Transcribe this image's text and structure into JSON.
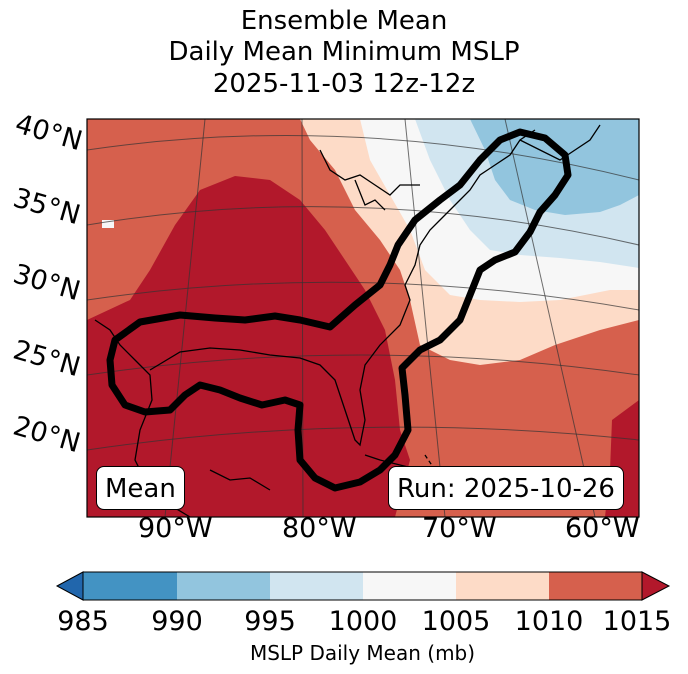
{
  "title": {
    "line1": "Ensemble Mean",
    "line2": "Daily Mean Minimum MSLP",
    "line3": "2025-11-03 12z-12z"
  },
  "map": {
    "lat_labels": [
      "40°N",
      "35°N",
      "30°N",
      "25°N",
      "20°N"
    ],
    "lon_labels": [
      "90°W",
      "80°W",
      "70°W",
      "60°W"
    ],
    "mean_box": "Mean",
    "run_box": "Run: 2025-10-26"
  },
  "colorbar": {
    "ticks": [
      "985",
      "990",
      "995",
      "1000",
      "1005",
      "1010",
      "1015"
    ],
    "label": "MSLP Daily Mean (mb)",
    "colors": {
      "below_985": "#2166ac",
      "985_990": "#4393c3",
      "990_995": "#92c5de",
      "995_1000": "#d1e5f0",
      "1000_1005": "#f7f7f7",
      "1005_1010": "#fddbc7",
      "1010_1015": "#d6604d",
      "above_1015": "#b2182b"
    }
  }
}
